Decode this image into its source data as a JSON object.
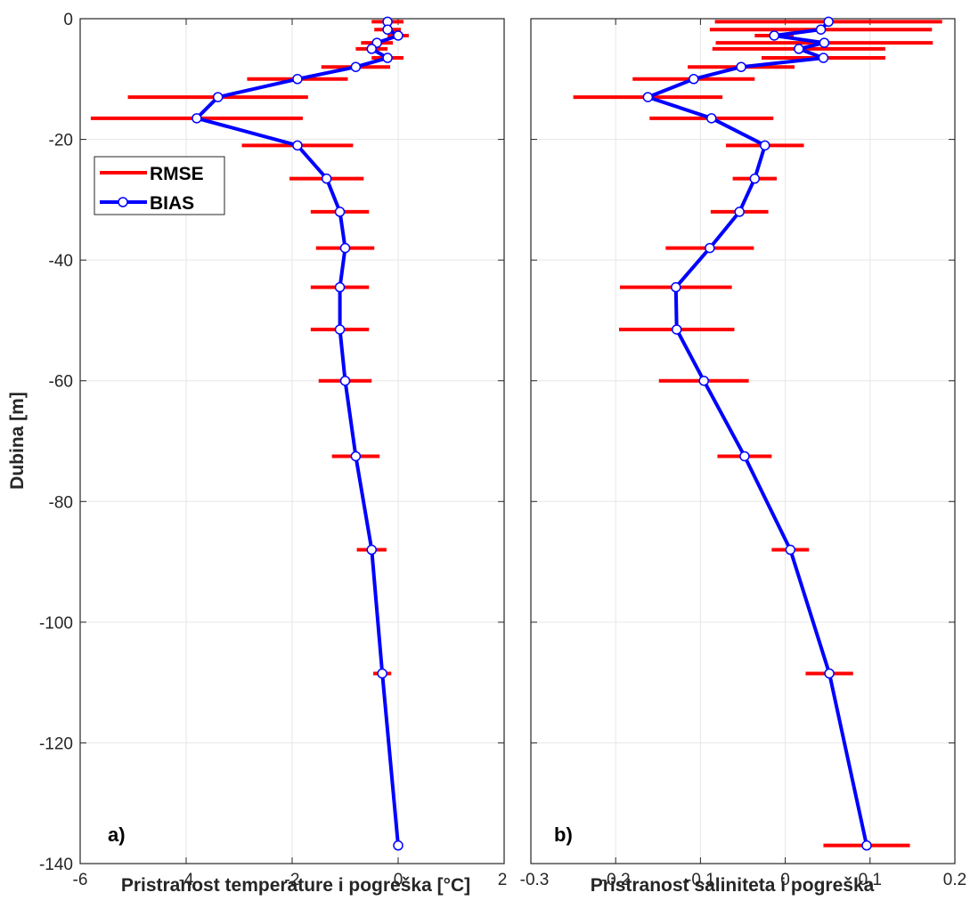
{
  "colors": {
    "rmse": "#ff0000",
    "bias": "#0000ff",
    "marker_fill": "#ffffff",
    "grid": "#e6e6e6",
    "axis": "#262626"
  },
  "legend": {
    "rmse_label": "RMSE",
    "bias_label": "BIAS",
    "placement": "upper-left of panel a"
  },
  "chart_data": [
    {
      "type": "line",
      "panel_label": "a)",
      "xlabel": "Pristranost temperature i pogreška [°C]",
      "ylabel": "Dubina [m]",
      "xlim": [
        -6,
        2
      ],
      "ylim": [
        -140,
        0
      ],
      "xticks": [
        "-6",
        "-4",
        "-2",
        "0",
        "2"
      ],
      "yticks": [
        "0",
        "-20",
        "-40",
        "-60",
        "-80",
        "-100",
        "-120",
        "-140"
      ],
      "grid": true,
      "series": [
        {
          "name": "BIAS",
          "depth": [
            -0.5,
            -1.8,
            -2.8,
            -4,
            -5,
            -6.5,
            -8,
            -10,
            -13,
            -16.5,
            -21,
            -26.5,
            -32,
            -38,
            -44.5,
            -51.5,
            -60,
            -72.5,
            -88,
            -108.5,
            -137
          ],
          "values": [
            -0.2,
            -0.2,
            0.0,
            -0.4,
            -0.5,
            -0.2,
            -0.8,
            -1.9,
            -3.4,
            -3.8,
            -1.9,
            -1.35,
            -1.1,
            -1.0,
            -1.1,
            -1.1,
            -1.0,
            -0.8,
            -0.5,
            -0.3,
            0.0
          ]
        },
        {
          "name": "RMSE",
          "depth": [
            -0.5,
            -1.8,
            -2.8,
            -4,
            -5,
            -6.5,
            -8,
            -10,
            -13,
            -16.5,
            -21,
            -26.5,
            -32,
            -38,
            -44.5,
            -51.5,
            -60,
            -72.5,
            -88,
            -108.5,
            -137
          ],
          "values": [
            0.3,
            0.25,
            0.2,
            0.3,
            0.3,
            0.3,
            0.65,
            0.95,
            1.7,
            2.0,
            1.05,
            0.7,
            0.55,
            0.55,
            0.55,
            0.55,
            0.5,
            0.45,
            0.28,
            0.17,
            0.0
          ]
        }
      ]
    },
    {
      "type": "line",
      "panel_label": "b)",
      "xlabel": "Pristranost saliniteta i pogreška",
      "ylabel": "",
      "xlim": [
        -0.3,
        0.2
      ],
      "ylim": [
        -140,
        0
      ],
      "xticks": [
        "-0.3",
        "-0.2",
        "-0.1",
        "0",
        "0.1",
        "0.2"
      ],
      "yticks": [],
      "grid": true,
      "series": [
        {
          "name": "BIAS",
          "depth": [
            -0.5,
            -1.8,
            -2.8,
            -4,
            -5,
            -6.5,
            -8,
            -10,
            -13,
            -16.5,
            -21,
            -26.5,
            -32,
            -38,
            -44.5,
            -51.5,
            -60,
            -72.5,
            -88,
            -108.5,
            -137
          ],
          "values": [
            0.051,
            0.042,
            -0.013,
            0.046,
            0.016,
            0.045,
            -0.052,
            -0.108,
            -0.162,
            -0.087,
            -0.024,
            -0.036,
            -0.054,
            -0.089,
            -0.129,
            -0.128,
            -0.096,
            -0.048,
            0.006,
            0.052,
            0.096
          ]
        },
        {
          "name": "RMSE",
          "depth": [
            -0.5,
            -1.8,
            -2.8,
            -4,
            -5,
            -6.5,
            -8,
            -10,
            -13,
            -16.5,
            -21,
            -26.5,
            -32,
            -38,
            -44.5,
            -51.5,
            -60,
            -72.5,
            -88,
            -108.5,
            -137
          ],
          "values": [
            0.134,
            0.131,
            0.023,
            0.128,
            0.102,
            0.073,
            0.063,
            0.072,
            0.088,
            0.073,
            0.046,
            0.026,
            0.034,
            0.052,
            0.066,
            0.068,
            0.053,
            0.032,
            0.022,
            0.028,
            0.051
          ]
        }
      ]
    }
  ]
}
